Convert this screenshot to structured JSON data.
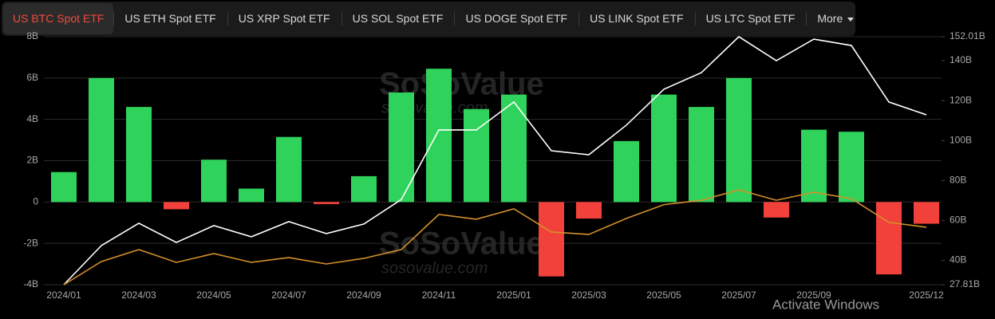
{
  "tabs": [
    "US BTC Spot ETF",
    "US ETH Spot ETF",
    "US XRP Spot ETF",
    "US SOL Spot ETF",
    "US DOGE Spot ETF",
    "US LINK Spot ETF",
    "US LTC Spot ETF",
    "More"
  ],
  "watermarks": [
    "SoSoValue",
    "sosovalue.com",
    "SoSoValue",
    "sosovalue.com"
  ],
  "overlay_text": "Activate Windows",
  "chart_data": {
    "type": "bar",
    "categories": [
      "2024/01",
      null,
      "2024/03",
      null,
      "2024/05",
      null,
      "2024/07",
      null,
      "2024/09",
      null,
      "2024/11",
      null,
      "2025/01",
      null,
      "2025/03",
      null,
      "2025/05",
      null,
      "2025/07",
      null,
      "2025/09",
      null,
      null,
      "2025/12"
    ],
    "series": [
      {
        "type": "bar",
        "positive_color": "#2fd35b",
        "negative_color": "#f2413a",
        "values": [
          1.45,
          6.0,
          4.6,
          -0.35,
          2.05,
          0.65,
          3.15,
          -0.1,
          1.25,
          5.3,
          6.45,
          4.5,
          5.2,
          -3.6,
          -0.8,
          2.95,
          5.2,
          4.6,
          6.0,
          -0.75,
          3.5,
          3.4,
          -3.5,
          -1.05
        ]
      },
      {
        "type": "line",
        "axis": "y2",
        "color": "#ffffff",
        "values": [
          27.81,
          47.4,
          58.6,
          49,
          57.4,
          51.8,
          59.4,
          53.4,
          58.2,
          70.5,
          105.3,
          105.3,
          119.3,
          94.9,
          92.9,
          107.7,
          125.7,
          134,
          152,
          140,
          150.8,
          147.6,
          119.3,
          112.9
        ]
      },
      {
        "type": "line",
        "axis": "y2",
        "color": "#d4902a",
        "values": [
          27.81,
          39.4,
          45.4,
          39,
          43.4,
          39,
          41.4,
          38.2,
          41,
          45.4,
          63,
          60.6,
          65.8,
          54.2,
          53,
          61,
          67.9,
          70.1,
          75.3,
          70.1,
          74.1,
          70.9,
          59,
          56.6
        ]
      }
    ],
    "ylim": [
      -4,
      8
    ],
    "yticks": [
      {
        "value": -4,
        "label": "-4B"
      },
      {
        "value": -2,
        "label": "-2B"
      },
      0,
      {
        "value": 2,
        "label": "2B"
      },
      {
        "value": 4,
        "label": "4B"
      },
      {
        "value": 6,
        "label": "6B"
      },
      {
        "value": 8,
        "label": "8B"
      }
    ],
    "y2lim": [
      27.81,
      152.01
    ],
    "y2ticks": [
      {
        "value": 27.81,
        "label": "27.81B"
      },
      {
        "value": 40,
        "label": "40B"
      },
      {
        "value": 60,
        "label": "60B"
      },
      {
        "value": 80,
        "label": "80B"
      },
      {
        "value": 100,
        "label": "100B"
      },
      {
        "value": 120,
        "label": "120B"
      },
      {
        "value": 140,
        "label": "140B"
      },
      {
        "value": 152.01,
        "label": "152.01B"
      }
    ],
    "grid": true
  }
}
